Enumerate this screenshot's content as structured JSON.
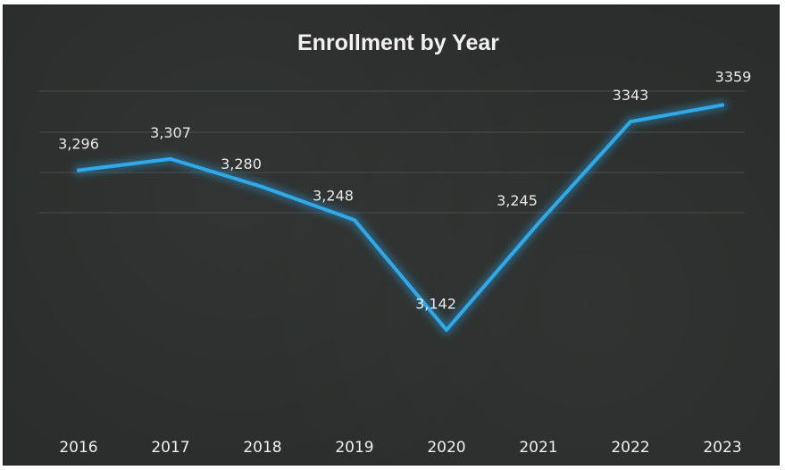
{
  "chart_data": {
    "type": "line",
    "title": "Enrollment by Year",
    "categories": [
      "2016",
      "2017",
      "2018",
      "2019",
      "2020",
      "2021",
      "2022",
      "2023"
    ],
    "series": [
      {
        "values": [
          3296,
          3307,
          3280,
          3248,
          3142,
          3245,
          3343,
          3359
        ],
        "labels": [
          "3,296",
          "3,307",
          "3,280",
          "3,248",
          "3,142",
          "3,245",
          "3343",
          "3359"
        ],
        "color": "#2ea9ea"
      }
    ],
    "ylim": [
      3050,
      3400
    ],
    "grid": true,
    "legend": "none"
  }
}
